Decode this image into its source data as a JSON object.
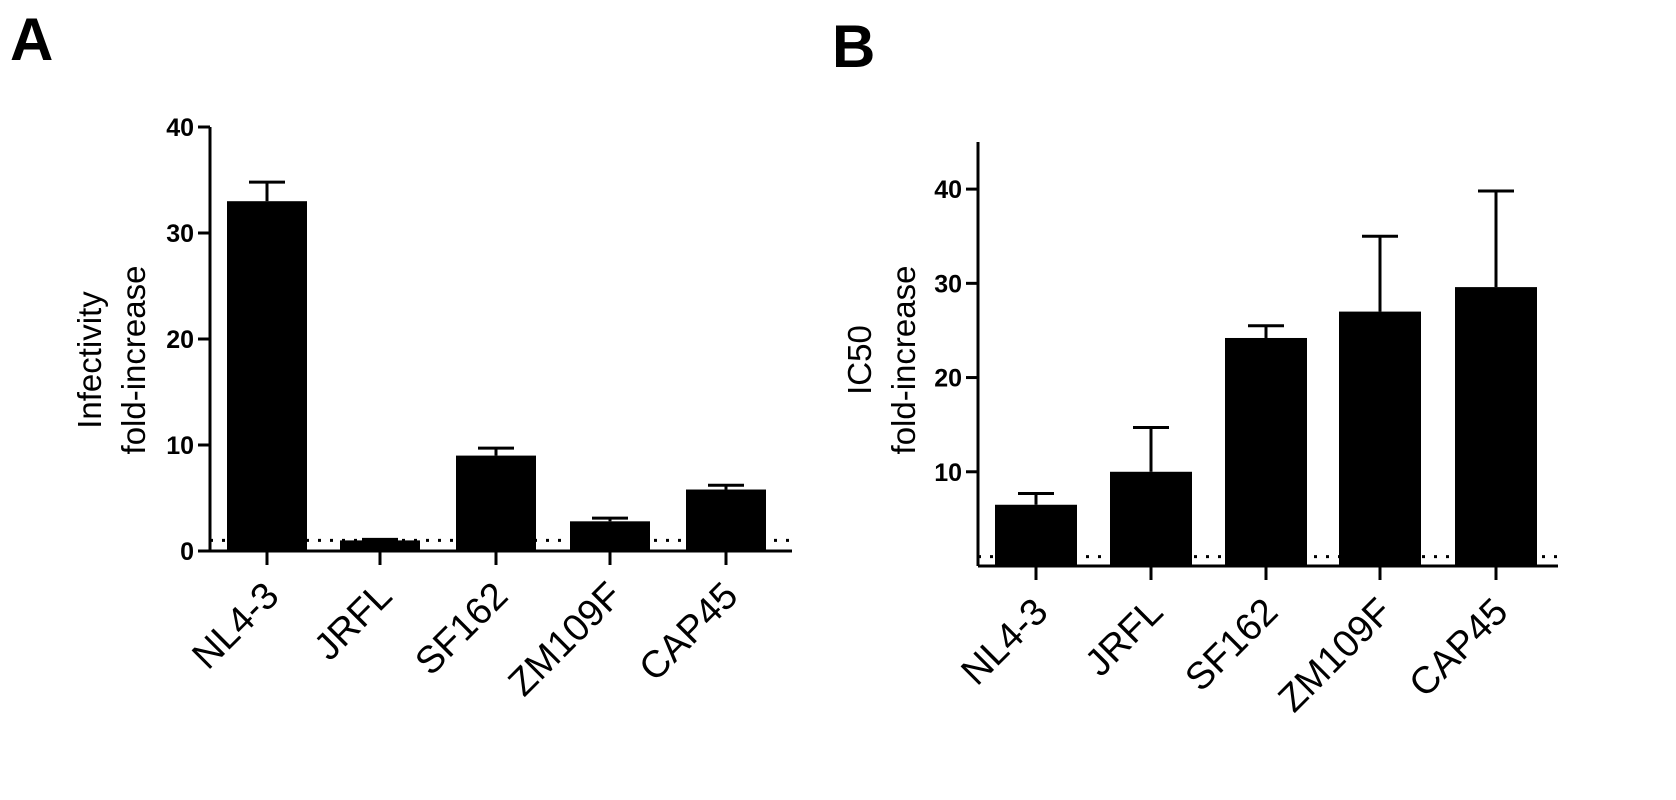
{
  "chart_data": [
    {
      "type": "bar",
      "panel_label": "A",
      "categories": [
        "NL4-3",
        "JRFL",
        "SF162",
        "ZM109F",
        "CAP45"
      ],
      "values": [
        33,
        1,
        9,
        2.8,
        5.8
      ],
      "error_upper": [
        34.8,
        1.1,
        9.7,
        3.1,
        6.2
      ],
      "ylabel": [
        "Infectivity",
        "fold-increase"
      ],
      "ylim": [
        0,
        40
      ],
      "yticks": [
        0,
        10,
        20,
        30,
        40
      ],
      "reference_line": 1,
      "grid": false
    },
    {
      "type": "bar",
      "panel_label": "B",
      "categories": [
        "NL4-3",
        "JRFL",
        "SF162",
        "ZM109F",
        "CAP45"
      ],
      "values": [
        6.5,
        10,
        24.2,
        27,
        29.6
      ],
      "error_upper": [
        7.7,
        14.7,
        25.5,
        35,
        39.8
      ],
      "ylabel": [
        "IC50",
        "fold-increase"
      ],
      "ylim": [
        0,
        45
      ],
      "yticks": [
        10,
        20,
        30,
        40
      ],
      "reference_line": 1,
      "grid": false
    }
  ]
}
